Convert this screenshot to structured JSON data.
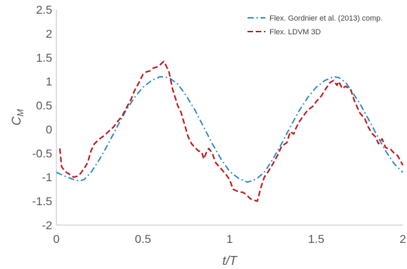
{
  "chart_data": {
    "type": "line",
    "title": "",
    "xlabel": "t/T",
    "ylabel_main": "C",
    "ylabel_sub": "M",
    "xlim": [
      0,
      2
    ],
    "ylim": [
      -2,
      2.5
    ],
    "x_ticks": [
      0,
      0.5,
      1,
      1.5,
      2
    ],
    "x_tick_labels": [
      "0",
      "0.5",
      "1",
      "1.5",
      "2"
    ],
    "y_ticks": [
      -2,
      -1.5,
      -1,
      -0.5,
      0,
      0.5,
      1,
      1.5,
      2,
      2.5
    ],
    "y_tick_labels": [
      "-2",
      "-1.5",
      "-1",
      "-0.5",
      "0",
      "0.5",
      "1",
      "1.5",
      "2",
      "2.5"
    ],
    "grid": false,
    "legend_position": "top-right",
    "series": [
      {
        "name": "Flex. Gordnier et al. (2013) comp.",
        "color": "#2e8ac6",
        "dash": "dash-dot",
        "x": [
          0,
          0.05,
          0.1,
          0.13,
          0.16,
          0.2,
          0.25,
          0.3,
          0.35,
          0.4,
          0.45,
          0.5,
          0.55,
          0.6,
          0.65,
          0.7,
          0.75,
          0.8,
          0.85,
          0.9,
          0.95,
          1.0,
          1.05,
          1.1,
          1.13,
          1.16,
          1.2,
          1.25,
          1.3,
          1.35,
          1.4,
          1.45,
          1.5,
          1.55,
          1.6,
          1.63,
          1.67,
          1.7,
          1.75,
          1.8,
          1.85,
          1.9,
          1.95,
          2.0
        ],
        "y": [
          -0.9,
          -0.98,
          -1.05,
          -1.08,
          -1.05,
          -0.9,
          -0.62,
          -0.3,
          0.05,
          0.38,
          0.66,
          0.88,
          1.02,
          1.1,
          1.08,
          0.95,
          0.7,
          0.4,
          0.05,
          -0.3,
          -0.62,
          -0.88,
          -1.02,
          -1.1,
          -1.08,
          -1.02,
          -0.9,
          -0.62,
          -0.3,
          0.05,
          0.38,
          0.66,
          0.88,
          1.02,
          1.1,
          1.08,
          0.98,
          0.82,
          0.55,
          0.22,
          -0.12,
          -0.45,
          -0.72,
          -0.9
        ]
      },
      {
        "name": "Flex. LDVM 3D",
        "color": "#c0191f",
        "dash": "dashed",
        "x": [
          0.02,
          0.03,
          0.05,
          0.08,
          0.1,
          0.12,
          0.14,
          0.16,
          0.18,
          0.2,
          0.22,
          0.25,
          0.28,
          0.3,
          0.33,
          0.35,
          0.38,
          0.4,
          0.43,
          0.45,
          0.48,
          0.5,
          0.52,
          0.54,
          0.56,
          0.58,
          0.6,
          0.62,
          0.63,
          0.65,
          0.67,
          0.7,
          0.72,
          0.74,
          0.76,
          0.78,
          0.8,
          0.82,
          0.84,
          0.85,
          0.87,
          0.88,
          0.9,
          0.92,
          0.95,
          0.98,
          1.0,
          1.02,
          1.05,
          1.08,
          1.1,
          1.12,
          1.14,
          1.16,
          1.18,
          1.2,
          1.22,
          1.25,
          1.28,
          1.3,
          1.33,
          1.35,
          1.37,
          1.38,
          1.4,
          1.43,
          1.45,
          1.48,
          1.5,
          1.53,
          1.55,
          1.58,
          1.6,
          1.62,
          1.63,
          1.65,
          1.67,
          1.7,
          1.72,
          1.75,
          1.78,
          1.8,
          1.82,
          1.84,
          1.86,
          1.88,
          1.9,
          1.93,
          1.95,
          1.97,
          2.0
        ],
        "y": [
          -0.4,
          -0.78,
          -0.88,
          -0.95,
          -1.0,
          -0.98,
          -0.92,
          -0.82,
          -0.7,
          -0.45,
          -0.3,
          -0.2,
          -0.12,
          -0.05,
          0.05,
          0.15,
          0.28,
          0.42,
          0.62,
          0.8,
          1.0,
          1.15,
          1.2,
          1.22,
          1.28,
          1.3,
          1.35,
          1.42,
          1.35,
          1.2,
          0.85,
          0.5,
          0.35,
          0.1,
          -0.15,
          -0.3,
          -0.38,
          -0.45,
          -0.48,
          -0.62,
          -0.45,
          -0.4,
          -0.5,
          -0.7,
          -0.82,
          -0.95,
          -1.05,
          -1.25,
          -1.3,
          -1.32,
          -1.38,
          -1.45,
          -1.48,
          -1.5,
          -1.22,
          -1.0,
          -0.9,
          -0.72,
          -0.52,
          -0.35,
          -0.28,
          -0.05,
          -0.1,
          0.0,
          0.15,
          0.3,
          0.4,
          0.48,
          0.58,
          0.7,
          0.82,
          0.98,
          1.02,
          0.92,
          1.0,
          0.85,
          0.9,
          0.82,
          0.6,
          0.35,
          0.22,
          0.05,
          -0.08,
          -0.15,
          -0.3,
          -0.2,
          -0.38,
          -0.42,
          -0.5,
          -0.55,
          -0.75
        ]
      }
    ]
  }
}
